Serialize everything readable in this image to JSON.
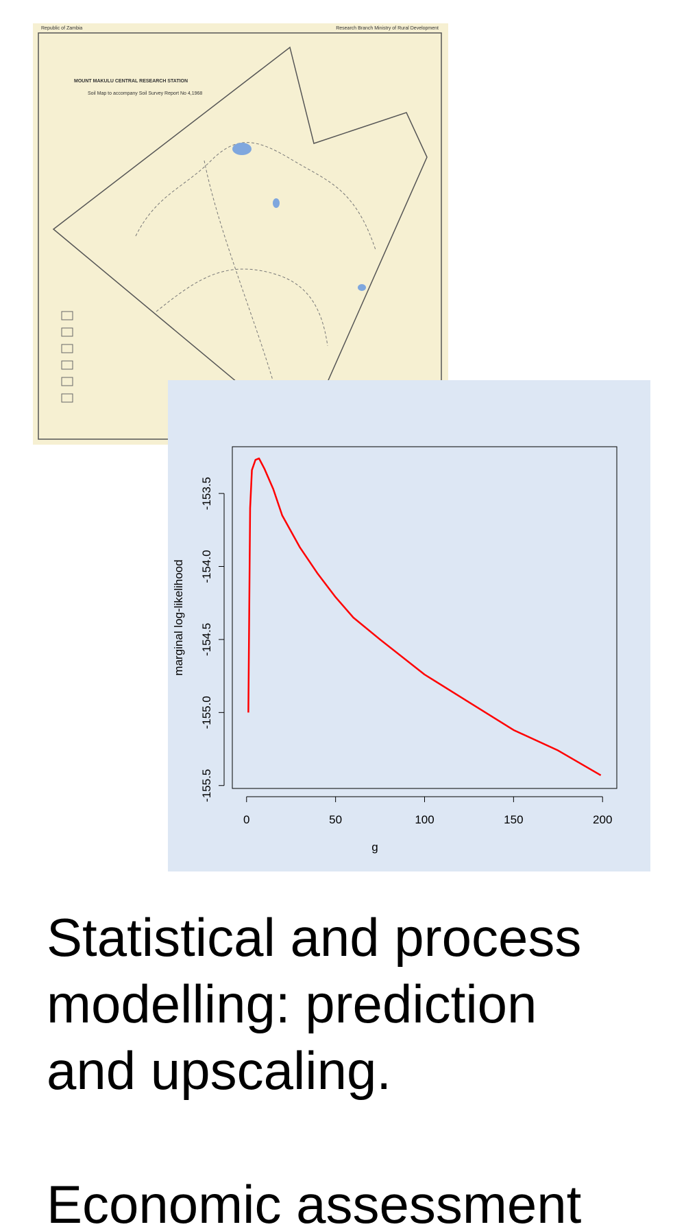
{
  "map": {
    "header_left": "Republic of Zambia",
    "header_right": "Research Branch  Ministry of Rural Development",
    "title": "MOUNT MAKULU CENTRAL RESEARCH STATION",
    "subtitle": "Soil Map to accompany Soil Survey Report No 4,1968"
  },
  "chart_data": {
    "type": "line",
    "xlabel": "g",
    "ylabel": "marginal log-likelihood",
    "x": [
      1,
      2,
      3,
      5,
      7,
      10,
      15,
      20,
      30,
      40,
      50,
      60,
      75,
      100,
      125,
      150,
      175,
      199
    ],
    "series": [
      {
        "name": "marginal log-likelihood",
        "color": "#ff0000",
        "values": [
          -155.0,
          -153.6,
          -153.34,
          -153.27,
          -153.26,
          -153.33,
          -153.47,
          -153.65,
          -153.87,
          -154.05,
          -154.21,
          -154.35,
          -154.5,
          -154.74,
          -154.93,
          -155.12,
          -155.26,
          -155.43
        ]
      }
    ],
    "xlim": [
      -8,
      208
    ],
    "ylim": [
      -155.52,
      -153.18
    ],
    "xticks": [
      0,
      50,
      100,
      150,
      200
    ],
    "yticks": [
      -153.5,
      {
        "value": -154,
        "label": "-154.0"
      },
      -154.5,
      {
        "value": -155,
        "label": "-155.0"
      },
      -155.5
    ]
  },
  "text": {
    "lines": [
      "Statistical and process",
      "modelling: prediction",
      "and upscaling.",
      "Economic assessment"
    ]
  }
}
